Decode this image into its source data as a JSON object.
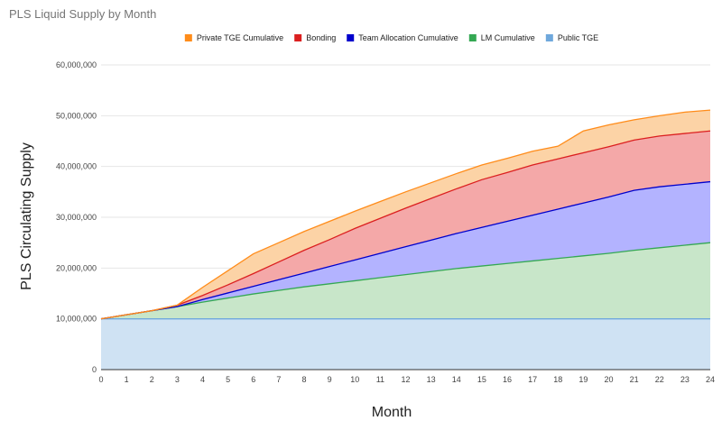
{
  "chart_data": {
    "type": "area",
    "stacked": true,
    "title": "PLS Liquid Supply by Month",
    "xlabel": "Month",
    "ylabel": "PLS Circulating Supply",
    "x": [
      0,
      1,
      2,
      3,
      4,
      5,
      6,
      7,
      8,
      9,
      10,
      11,
      12,
      13,
      14,
      15,
      16,
      17,
      18,
      19,
      20,
      21,
      22,
      23,
      24
    ],
    "x_tick_labels": [
      "0",
      "1",
      "2",
      "3",
      "4",
      "5",
      "6",
      "7",
      "8",
      "9",
      "10",
      "11",
      "12",
      "13",
      "14",
      "15",
      "16",
      "17",
      "18",
      "19",
      "20",
      "21",
      "22",
      "23",
      "24"
    ],
    "ylim": [
      0,
      60000000
    ],
    "y_ticks": [
      0,
      10000000,
      20000000,
      30000000,
      40000000,
      50000000,
      60000000
    ],
    "y_tick_labels": [
      "0",
      "10,000,000",
      "20,000,000",
      "30,000,000",
      "40,000,000",
      "50,000,000",
      "60,000,000"
    ],
    "grid": true,
    "legend_position": "top",
    "series": [
      {
        "name": "Public TGE",
        "color": "#6fa8dc",
        "fill": "#cfe2f3",
        "values": [
          10000000,
          10000000,
          10000000,
          10000000,
          10000000,
          10000000,
          10000000,
          10000000,
          10000000,
          10000000,
          10000000,
          10000000,
          10000000,
          10000000,
          10000000,
          10000000,
          10000000,
          10000000,
          10000000,
          10000000,
          10000000,
          10000000,
          10000000,
          10000000,
          10000000
        ]
      },
      {
        "name": "LM Cumulative",
        "color": "#34a853",
        "fill": "#c8e6c9",
        "values": [
          0,
          800000,
          1600000,
          2400000,
          3300000,
          4100000,
          4900000,
          5600000,
          6300000,
          6900000,
          7500000,
          8100000,
          8700000,
          9300000,
          9900000,
          10400000,
          10900000,
          11400000,
          11900000,
          12400000,
          12900000,
          13500000,
          14000000,
          14500000,
          15000000
        ]
      },
      {
        "name": "Team Allocation Cumulative",
        "color": "#0000cc",
        "fill": "#b3b3ff",
        "values": [
          0,
          0,
          0,
          0,
          500000,
          1000000,
          1500000,
          2100000,
          2700000,
          3400000,
          4100000,
          4800000,
          5500000,
          6200000,
          6900000,
          7600000,
          8300000,
          9000000,
          9700000,
          10400000,
          11100000,
          11800000,
          12000000,
          12000000,
          12000000
        ]
      },
      {
        "name": "Bonding",
        "color": "#db1f1f",
        "fill": "#f4a8a8",
        "values": [
          0,
          0,
          0,
          300000,
          800000,
          1600000,
          2500000,
          3500000,
          4500000,
          5300000,
          6200000,
          6900000,
          7600000,
          8200000,
          8800000,
          9400000,
          9600000,
          9900000,
          9900000,
          9900000,
          9900000,
          9900000,
          10000000,
          10000000,
          10000000
        ]
      },
      {
        "name": "Private TGE Cumulative",
        "color": "#ff8c1a",
        "fill": "#fcd3a6",
        "values": [
          0,
          0,
          0,
          0,
          1600000,
          2800000,
          3900000,
          3800000,
          3700000,
          3600000,
          3400000,
          3300000,
          3200000,
          3100000,
          3000000,
          2900000,
          2800000,
          2700000,
          2500000,
          4300000,
          4300000,
          4000000,
          4000000,
          4200000,
          4100000
        ]
      }
    ],
    "legend_order": [
      "Private TGE Cumulative",
      "Bonding",
      "Team Allocation Cumulative",
      "LM Cumulative",
      "Public TGE"
    ]
  }
}
